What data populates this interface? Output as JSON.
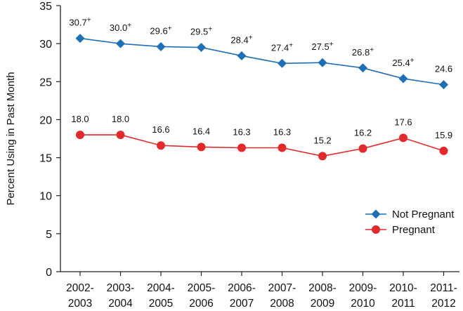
{
  "chart_data": {
    "type": "line",
    "ylabel": "Percent Using in Past Month",
    "xlabel": "",
    "ylim": [
      0,
      35
    ],
    "yticks": [
      0,
      5,
      10,
      15,
      20,
      25,
      30,
      35
    ],
    "categories": [
      [
        "2002-",
        "2003"
      ],
      [
        "2003-",
        "2004"
      ],
      [
        "2004-",
        "2005"
      ],
      [
        "2005-",
        "2006"
      ],
      [
        "2006-",
        "2007"
      ],
      [
        "2007-",
        "2008"
      ],
      [
        "2008-",
        "2009"
      ],
      [
        "2009-",
        "2010"
      ],
      [
        "2010-",
        "2011"
      ],
      [
        "2011-",
        "2012"
      ]
    ],
    "series": [
      {
        "name": "Not Pregnant",
        "color": "#1f6fb7",
        "marker": "diamond",
        "values": [
          30.7,
          30.0,
          29.6,
          29.5,
          28.4,
          27.4,
          27.5,
          26.8,
          25.4,
          24.6
        ],
        "labels": [
          "30.7",
          "30.0",
          "29.6",
          "29.5",
          "28.4",
          "27.4",
          "27.5",
          "26.8",
          "25.4",
          "24.6"
        ],
        "label_marks": [
          "+",
          "+",
          "+",
          "+",
          "+",
          "+",
          "+",
          "+",
          "+",
          ""
        ]
      },
      {
        "name": "Pregnant",
        "color": "#e32a2a",
        "marker": "circle",
        "values": [
          18.0,
          18.0,
          16.6,
          16.4,
          16.3,
          16.3,
          15.2,
          16.2,
          17.6,
          15.9
        ],
        "labels": [
          "18.0",
          "18.0",
          "16.6",
          "16.4",
          "16.3",
          "16.3",
          "15.2",
          "16.2",
          "17.6",
          "15.9"
        ],
        "label_marks": [
          "",
          "",
          "",
          "",
          "",
          "",
          "",
          "",
          "",
          ""
        ]
      }
    ],
    "legend": {
      "position": "bottom-right",
      "entries": [
        "Not Pregnant",
        "Pregnant"
      ]
    },
    "grid": false
  }
}
